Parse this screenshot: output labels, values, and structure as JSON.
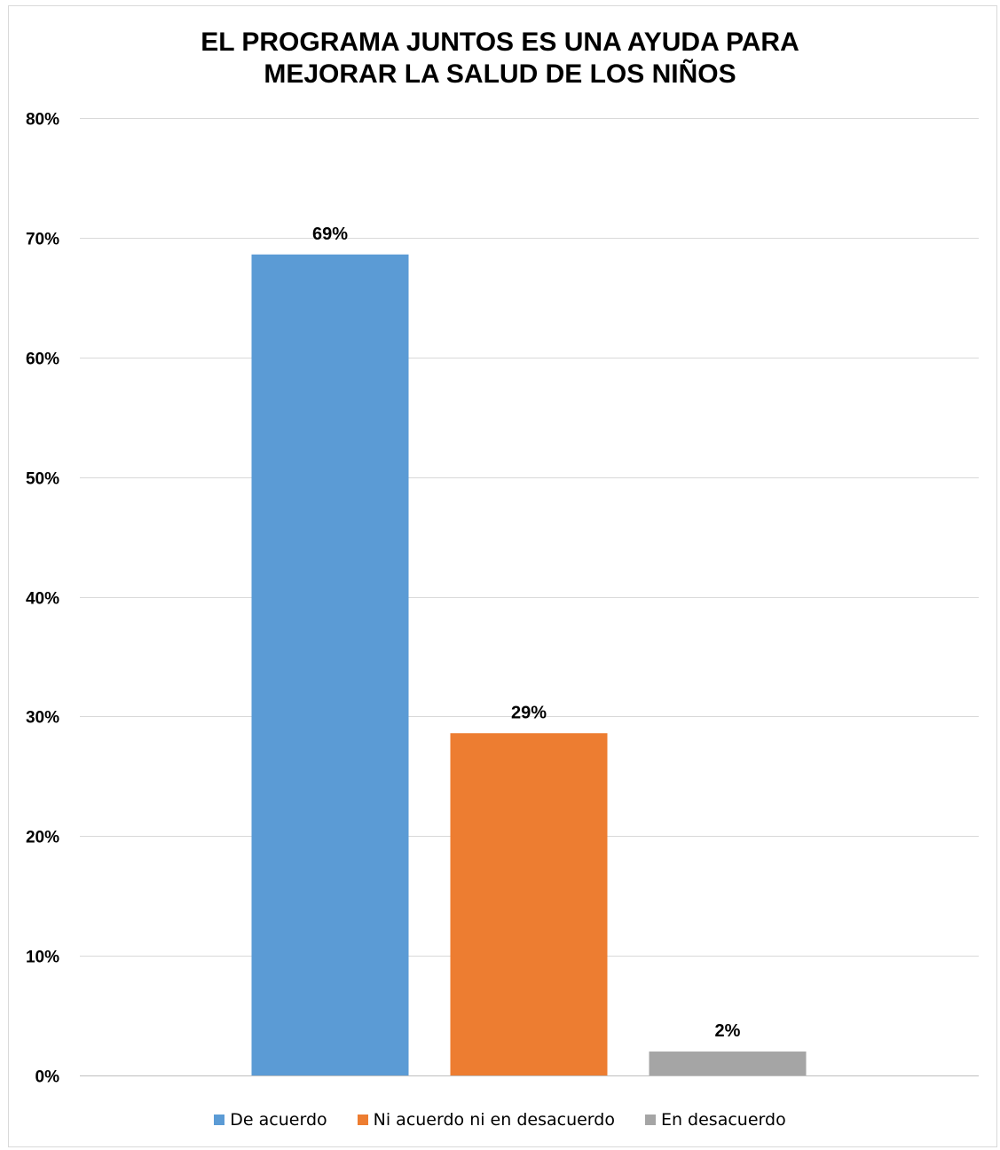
{
  "chart_data": {
    "type": "bar",
    "title_lines": [
      "EL PROGRAMA JUNTOS ES UNA AYUDA PARA",
      "MEJORAR LA SALUD DE LOS NIÑOS"
    ],
    "categories": [
      "De acuerdo",
      "Ni acuerdo ni en desacuerdo",
      "En desacuerdo"
    ],
    "values": [
      0.686,
      0.286,
      0.02
    ],
    "data_labels": [
      "69%",
      "29%",
      "2%"
    ],
    "colors": [
      "#5b9bd5",
      "#ed7d31",
      "#a5a5a5"
    ],
    "ylim": [
      0,
      0.8
    ],
    "y_ticks": [
      0,
      0.1,
      0.2,
      0.3,
      0.4,
      0.5,
      0.6,
      0.7,
      0.8
    ],
    "y_tick_labels": [
      "0%",
      "10%",
      "20%",
      "30%",
      "40%",
      "50%",
      "60%",
      "70%",
      "80%"
    ],
    "xlabel": "",
    "ylabel": "",
    "grid": true,
    "legend_position": "bottom",
    "legend": [
      "De acuerdo",
      "Ni acuerdo ni en desacuerdo",
      "En desacuerdo"
    ]
  }
}
